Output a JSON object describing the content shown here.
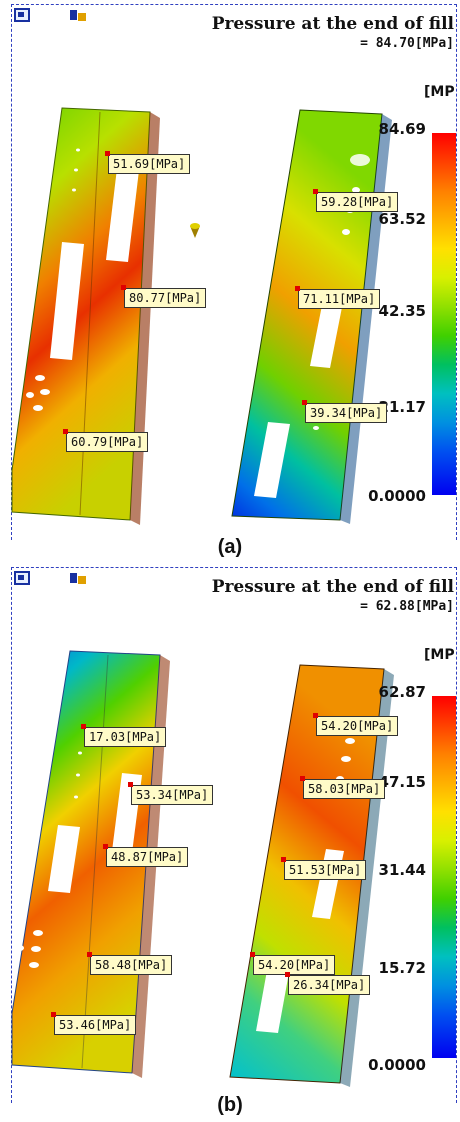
{
  "panels": [
    {
      "title": "Pressure at the end of fill",
      "max_pressure": "= 84.70[MPa]",
      "unit": "[MP",
      "scale_ticks": [
        "84.69",
        "63.52",
        "42.35",
        "21.17",
        "0.0000"
      ],
      "probes": [
        "51.69[MPa]",
        "80.77[MPa]",
        "60.79[MPa]",
        "59.28[MPa]",
        "71.11[MPa]",
        "39.34[MPa]"
      ],
      "caption": "(a)"
    },
    {
      "title": "Pressure at the end of fill",
      "max_pressure": "= 62.88[MPa]",
      "unit": "[MP",
      "scale_ticks": [
        "62.87",
        "47.15",
        "31.44",
        "15.72",
        "0.0000"
      ],
      "probes": [
        "17.03[MPa]",
        "53.34[MPa]",
        "48.87[MPa]",
        "58.48[MPa]",
        "53.46[MPa]",
        "54.20[MPa]",
        "58.03[MPa]",
        "51.53[MPa]",
        "54.20[MPa]",
        "26.34[MPa]"
      ],
      "caption": "(b)"
    }
  ],
  "icons": [
    "window-icon",
    "lock-icon"
  ],
  "colors": {
    "frame": "#3040c0",
    "probe_bg": "#fffbc8",
    "scale_max": "#ff0000",
    "scale_min": "#0000f0"
  }
}
